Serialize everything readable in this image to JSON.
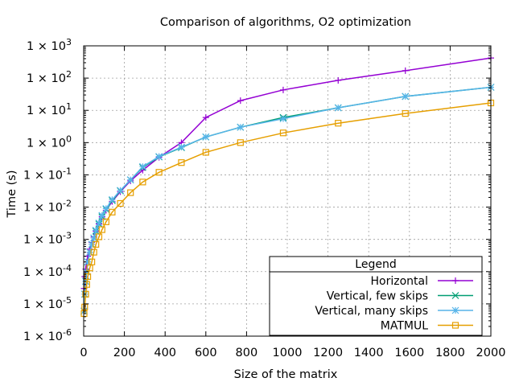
{
  "chart_data": {
    "type": "line",
    "title": "Comparison of algorithms, O2 optimization",
    "xlabel": "Size of the matrix",
    "ylabel": "Time (s)",
    "xlim": [
      0,
      2000
    ],
    "ylim": [
      1e-06,
      1000
    ],
    "y_scale": "log",
    "grid": true,
    "x_ticks": [
      0,
      200,
      400,
      600,
      800,
      1000,
      1200,
      1400,
      1600,
      1800,
      2000
    ],
    "x_tick_labels": [
      "0",
      "200",
      "400",
      "600",
      "800",
      "1000",
      "1200",
      "1400",
      "1600",
      "1800",
      "2000"
    ],
    "y_ticks": [
      {
        "value": 1e-06,
        "base": "1 × 10",
        "exp": "-6"
      },
      {
        "value": 1e-05,
        "base": "1 × 10",
        "exp": "-5"
      },
      {
        "value": 0.0001,
        "base": "1 × 10",
        "exp": "-4"
      },
      {
        "value": 0.001,
        "base": "1 × 10",
        "exp": "-3"
      },
      {
        "value": 0.01,
        "base": "1 × 10",
        "exp": "-2"
      },
      {
        "value": 0.1,
        "base": "1 × 10",
        "exp": "-1"
      },
      {
        "value": 1,
        "base": "1 × 10",
        "exp": "0"
      },
      {
        "value": 10,
        "base": "1 × 10",
        "exp": "1"
      },
      {
        "value": 100,
        "base": "1 × 10",
        "exp": "2"
      },
      {
        "value": 1000,
        "base": "1 × 10",
        "exp": "3"
      }
    ],
    "legend": {
      "title": "Legend",
      "position": "bottom-right"
    },
    "series": [
      {
        "name": "Horizontal",
        "color": "#9400d3",
        "marker": "plus",
        "x": [
          2,
          5,
          10,
          15,
          20,
          30,
          40,
          50,
          60,
          75,
          90,
          110,
          140,
          180,
          230,
          290,
          370,
          480,
          600,
          770,
          980,
          1250,
          1580,
          2000
        ],
        "y": [
          3e-05,
          7e-05,
          0.00012,
          0.0002,
          0.0003,
          0.0005,
          0.0008,
          0.0012,
          0.0018,
          0.003,
          0.005,
          0.008,
          0.015,
          0.03,
          0.065,
          0.14,
          0.35,
          1.0,
          6,
          20,
          43,
          85,
          170,
          420
        ]
      },
      {
        "name": "Vertical, few skips",
        "color": "#009e73",
        "marker": "cross",
        "x": [
          2,
          5,
          10,
          15,
          20,
          30,
          40,
          50,
          60,
          75,
          90,
          110,
          140,
          180,
          230,
          290,
          370,
          480,
          600,
          770,
          980,
          1250,
          1580,
          2000
        ],
        "y": [
          6e-06,
          2e-05,
          5e-05,
          0.0001,
          0.0002,
          0.0004,
          0.0007,
          0.0011,
          0.0018,
          0.003,
          0.005,
          0.0085,
          0.016,
          0.032,
          0.07,
          0.17,
          0.36,
          0.7,
          1.5,
          3,
          6,
          12,
          27,
          52
        ]
      },
      {
        "name": "Vertical, many skips",
        "color": "#56b4e9",
        "marker": "star",
        "x": [
          2,
          5,
          10,
          15,
          20,
          30,
          40,
          50,
          60,
          75,
          90,
          110,
          140,
          180,
          230,
          290,
          370,
          480,
          600,
          770,
          980,
          1250,
          1580,
          2000
        ],
        "y": [
          6e-06,
          2e-05,
          5e-05,
          0.0001,
          0.0002,
          0.0004,
          0.0007,
          0.0011,
          0.0019,
          0.0032,
          0.0055,
          0.009,
          0.017,
          0.033,
          0.07,
          0.18,
          0.37,
          0.72,
          1.5,
          3,
          5.5,
          12,
          27,
          52
        ]
      },
      {
        "name": "MATMUL",
        "color": "#e69f00",
        "marker": "square",
        "x": [
          2,
          5,
          10,
          15,
          20,
          30,
          40,
          50,
          60,
          75,
          90,
          110,
          140,
          180,
          230,
          290,
          370,
          480,
          600,
          770,
          980,
          1250,
          1580,
          2000
        ],
        "y": [
          5e-06,
          8e-06,
          2e-05,
          4e-05,
          7e-05,
          0.00013,
          0.0002,
          0.0004,
          0.0007,
          0.0012,
          0.002,
          0.0035,
          0.007,
          0.013,
          0.028,
          0.06,
          0.12,
          0.24,
          0.5,
          1.0,
          2.0,
          4.0,
          8.0,
          17
        ]
      }
    ]
  }
}
